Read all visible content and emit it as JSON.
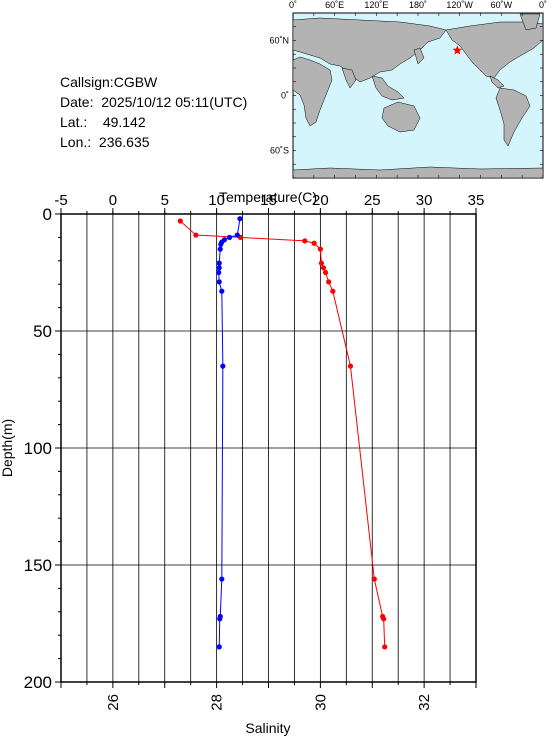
{
  "header": {
    "callsign_label": "Callsign:",
    "callsign": "CGBW",
    "date_label": "Date:",
    "date": "2025/10/12 05:11(UTC)",
    "lat_label": "Lat.:",
    "lat": "49.142",
    "lon_label": "Lon.:",
    "lon": "236.635"
  },
  "map": {
    "lon_labels": [
      "0˚",
      "60˚E",
      "120˚E",
      "180˚",
      "120˚W",
      "60˚W",
      "0˚"
    ],
    "lat_labels": [
      "60˚N",
      "0˚",
      "60˚S"
    ],
    "ocean_color": "#d4f5fb",
    "land_color": "#b3b3b3",
    "marker_color": "#ff0000",
    "marker_lat": 49.142,
    "marker_lon": 236.635
  },
  "chart_data": {
    "type": "line",
    "xlabel_top": "Temperature(C)",
    "xlabel_bottom": "Salinity",
    "ylabel": "Depth(m)",
    "temperature_ticks": [
      "-5",
      "0",
      "5",
      "10",
      "15",
      "20",
      "25",
      "30",
      "35"
    ],
    "salinity_ticks": [
      "26",
      "28",
      "30",
      "32"
    ],
    "depth_ticks": [
      "0",
      "50",
      "100",
      "150",
      "200"
    ],
    "temperature_range": [
      -5,
      35
    ],
    "salinity_range": [
      25,
      33
    ],
    "depth_range": [
      0,
      200
    ],
    "grid": true,
    "series": [
      {
        "color": "#ff0000",
        "axis": "temperature",
        "points": [
          [
            6.5,
            3
          ],
          [
            8.0,
            9
          ],
          [
            12.3,
            10
          ],
          [
            18.5,
            11.5
          ],
          [
            19.4,
            12.5
          ],
          [
            20.0,
            15
          ],
          [
            20.1,
            21
          ],
          [
            20.3,
            23
          ],
          [
            20.5,
            25
          ],
          [
            20.8,
            29
          ],
          [
            21.2,
            33
          ],
          [
            22.9,
            65
          ],
          [
            25.2,
            156
          ],
          [
            26.0,
            172
          ],
          [
            26.1,
            173
          ],
          [
            26.2,
            185
          ]
        ]
      },
      {
        "color": "#0000ff",
        "axis": "salinity",
        "points": [
          [
            28.45,
            2
          ],
          [
            28.4,
            9
          ],
          [
            28.25,
            10
          ],
          [
            28.15,
            11
          ],
          [
            28.1,
            12
          ],
          [
            28.08,
            13
          ],
          [
            28.07,
            15
          ],
          [
            28.05,
            21
          ],
          [
            28.05,
            23
          ],
          [
            28.04,
            25
          ],
          [
            28.05,
            29
          ],
          [
            28.1,
            33
          ],
          [
            28.12,
            65
          ],
          [
            28.1,
            156
          ],
          [
            28.07,
            172
          ],
          [
            28.06,
            173
          ],
          [
            28.05,
            185
          ]
        ]
      }
    ]
  }
}
